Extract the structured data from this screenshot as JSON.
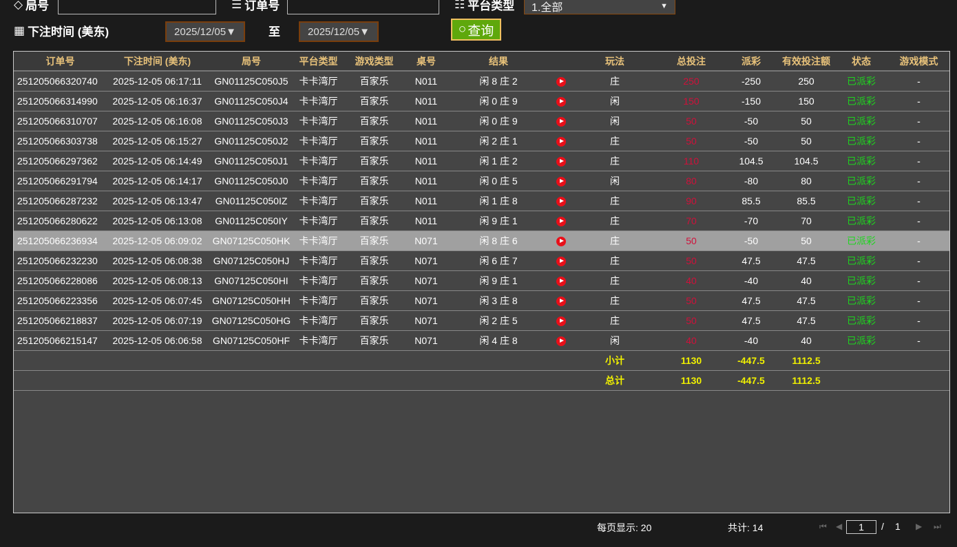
{
  "filters": {
    "game_no_label": "局号",
    "game_no_value": "",
    "order_no_label": "订单号",
    "order_no_value": "",
    "platform_label": "平台类型",
    "platform_value": "1.全部",
    "time_label": "下注时间 (美东)",
    "date_from": "2025/12/05▼",
    "to_label": "至",
    "date_to": "2025/12/05▼",
    "query_label": "查询"
  },
  "table": {
    "headers": [
      "订单号",
      "下注时间 (美东)",
      "局号",
      "平台类型",
      "游戏类型",
      "桌号",
      "结果",
      "",
      "玩法",
      "总投注",
      "派彩",
      "有效投注额",
      "状态",
      "游戏模式"
    ],
    "rows": [
      [
        "251205066320740",
        "2025-12-05 06:17:11",
        "GN01125C050J5",
        "卡卡湾厅",
        "百家乐",
        "N011",
        "闲 8 庄 2",
        "庄",
        "250",
        "-250",
        "250",
        "已派彩",
        "-"
      ],
      [
        "251205066314990",
        "2025-12-05 06:16:37",
        "GN01125C050J4",
        "卡卡湾厅",
        "百家乐",
        "N011",
        "闲 0 庄 9",
        "闲",
        "150",
        "-150",
        "150",
        "已派彩",
        "-"
      ],
      [
        "251205066310707",
        "2025-12-05 06:16:08",
        "GN01125C050J3",
        "卡卡湾厅",
        "百家乐",
        "N011",
        "闲 0 庄 9",
        "闲",
        "50",
        "-50",
        "50",
        "已派彩",
        "-"
      ],
      [
        "251205066303738",
        "2025-12-05 06:15:27",
        "GN01125C050J2",
        "卡卡湾厅",
        "百家乐",
        "N011",
        "闲 2 庄 1",
        "庄",
        "50",
        "-50",
        "50",
        "已派彩",
        "-"
      ],
      [
        "251205066297362",
        "2025-12-05 06:14:49",
        "GN01125C050J1",
        "卡卡湾厅",
        "百家乐",
        "N011",
        "闲 1 庄 2",
        "庄",
        "110",
        "104.5",
        "104.5",
        "已派彩",
        "-"
      ],
      [
        "251205066291794",
        "2025-12-05 06:14:17",
        "GN01125C050J0",
        "卡卡湾厅",
        "百家乐",
        "N011",
        "闲 0 庄 5",
        "闲",
        "80",
        "-80",
        "80",
        "已派彩",
        "-"
      ],
      [
        "251205066287232",
        "2025-12-05 06:13:47",
        "GN01125C050IZ",
        "卡卡湾厅",
        "百家乐",
        "N011",
        "闲 1 庄 8",
        "庄",
        "90",
        "85.5",
        "85.5",
        "已派彩",
        "-"
      ],
      [
        "251205066280622",
        "2025-12-05 06:13:08",
        "GN01125C050IY",
        "卡卡湾厅",
        "百家乐",
        "N011",
        "闲 9 庄 1",
        "庄",
        "70",
        "-70",
        "70",
        "已派彩",
        "-"
      ],
      [
        "251205066236934",
        "2025-12-05 06:09:02",
        "GN07125C050HK",
        "卡卡湾厅",
        "百家乐",
        "N071",
        "闲 8 庄 6",
        "庄",
        "50",
        "-50",
        "50",
        "已派彩",
        "-"
      ],
      [
        "251205066232230",
        "2025-12-05 06:08:38",
        "GN07125C050HJ",
        "卡卡湾厅",
        "百家乐",
        "N071",
        "闲 6 庄 7",
        "庄",
        "50",
        "47.5",
        "47.5",
        "已派彩",
        "-"
      ],
      [
        "251205066228086",
        "2025-12-05 06:08:13",
        "GN07125C050HI",
        "卡卡湾厅",
        "百家乐",
        "N071",
        "闲 9 庄 1",
        "庄",
        "40",
        "-40",
        "40",
        "已派彩",
        "-"
      ],
      [
        "251205066223356",
        "2025-12-05 06:07:45",
        "GN07125C050HH",
        "卡卡湾厅",
        "百家乐",
        "N071",
        "闲 3 庄 8",
        "庄",
        "50",
        "47.5",
        "47.5",
        "已派彩",
        "-"
      ],
      [
        "251205066218837",
        "2025-12-05 06:07:19",
        "GN07125C050HG",
        "卡卡湾厅",
        "百家乐",
        "N071",
        "闲 2 庄 5",
        "庄",
        "50",
        "47.5",
        "47.5",
        "已派彩",
        "-"
      ],
      [
        "251205066215147",
        "2025-12-05 06:06:58",
        "GN07125C050HF",
        "卡卡湾厅",
        "百家乐",
        "N071",
        "闲 4 庄 8",
        "闲",
        "40",
        "-40",
        "40",
        "已派彩",
        "-"
      ]
    ],
    "highlighted_row": 8,
    "subtotal": {
      "label": "小计",
      "total_bet": "1130",
      "payout": "-447.5",
      "valid_bet": "1112.5"
    },
    "grand_total": {
      "label": "总计",
      "total_bet": "1130",
      "payout": "-447.5",
      "valid_bet": "1112.5"
    }
  },
  "footer": {
    "per_page": "每页显示: 20",
    "total": "共计: 14",
    "page": "1",
    "separator": "/",
    "pages": "1"
  },
  "colors": {
    "loss": "#5fd400",
    "win": "#d0103a",
    "status": "#1ed61e",
    "header": "#e8c27a",
    "total": "#f0f000"
  }
}
